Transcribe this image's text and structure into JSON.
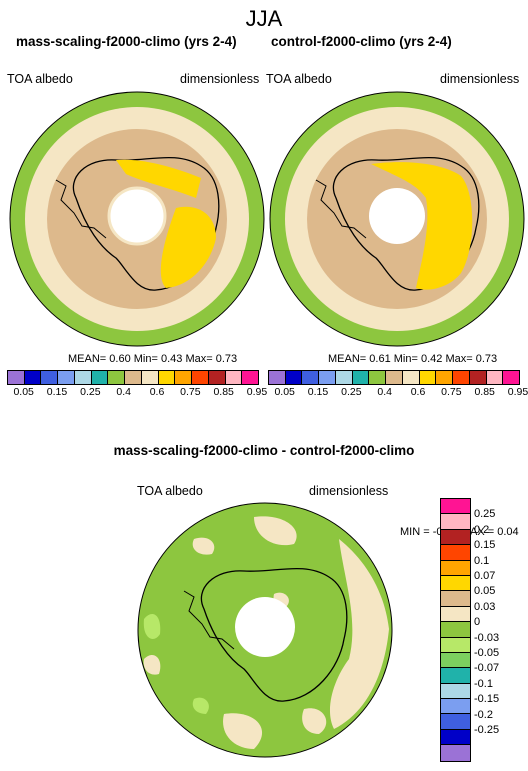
{
  "page_title": "JJA",
  "panels": [
    {
      "title": "mass-scaling-f2000-climo (yrs 2-4)",
      "var": "TOA albedo",
      "units": "dimensionless",
      "mean_label": "MEAN=",
      "mean": "0.60",
      "min_label": "Min=",
      "min": "0.43",
      "max_label": "Max=",
      "max": "0.73"
    },
    {
      "title": "control-f2000-climo (yrs 2-4)",
      "var": "TOA albedo",
      "units": "dimensionless",
      "mean_label": "MEAN=",
      "mean": "0.61",
      "min_label": "Min=",
      "min": "0.42",
      "max_label": "Max=",
      "max": "0.73"
    }
  ],
  "colorbar_abs": {
    "colors": [
      "#9b72d6",
      "#0000c8",
      "#3f5fe0",
      "#7b9ef0",
      "#add8e6",
      "#20b2aa",
      "#8dc63f",
      "#ddb98c",
      "#f5e6c4",
      "#ffd700",
      "#ffa500",
      "#ff4500",
      "#b22222",
      "#ffb6c1",
      "#ff1493"
    ],
    "labels": [
      "0.05",
      "0.15",
      "0.25",
      "0.4",
      "0.6",
      "0.75",
      "0.85",
      "0.95"
    ]
  },
  "diff": {
    "title": "mass-scaling-f2000-climo - control-f2000-climo",
    "var": "TOA albedo",
    "units": "dimensionless",
    "minmax": "MIN = -0.05 MAX =  0.04"
  },
  "colorbar_diff": {
    "colors": [
      "#ff1493",
      "#ffb6c1",
      "#b22222",
      "#ff4500",
      "#ffa500",
      "#ffd700",
      "#ddb98c",
      "#f5e6c4",
      "#8dc63f",
      "#b7e868",
      "#7ccf5f",
      "#20b2aa",
      "#add8e6",
      "#7b9ef0",
      "#3f5fe0",
      "#0000c8",
      "#9b72d6"
    ],
    "labels": [
      "0.25",
      "0.2",
      "0.15",
      "0.1",
      "0.07",
      "0.05",
      "0.03",
      "0",
      "-0.03",
      "-0.05",
      "-0.07",
      "-0.1",
      "-0.15",
      "-0.2",
      "-0.25"
    ]
  }
}
